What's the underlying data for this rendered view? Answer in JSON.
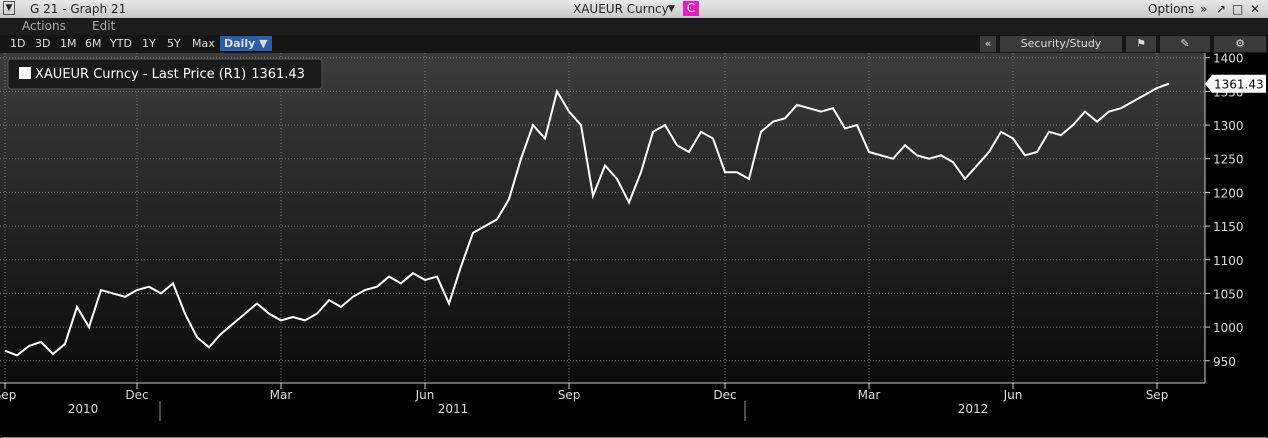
{
  "ui": {
    "window_title": "G 21 - Graph 21",
    "security": "XAUEUR Curncy",
    "security_tag": "C",
    "options": "Options",
    "menu": [
      "Actions",
      "Edit"
    ],
    "periods": [
      "1D",
      "3D",
      "1M",
      "6M",
      "YTD",
      "1Y",
      "5Y",
      "Max",
      "Daily ▼"
    ],
    "collapse": "«",
    "security_study": "Security/Study"
  },
  "chart_data": {
    "type": "line",
    "categories": [
      "Sep",
      null,
      null,
      null,
      null,
      null,
      null,
      null,
      null,
      null,
      null,
      "Dec",
      null,
      null,
      null,
      null,
      null,
      null,
      null,
      null,
      null,
      null,
      null,
      "Mar",
      null,
      null,
      null,
      null,
      null,
      null,
      null,
      null,
      null,
      null,
      null,
      "Jun",
      null,
      null,
      null,
      null,
      null,
      null,
      null,
      null,
      null,
      null,
      null,
      "Sep",
      null,
      null,
      null,
      null,
      null,
      null,
      null,
      null,
      null,
      null,
      null,
      null,
      "Dec",
      null,
      null,
      null,
      null,
      null,
      null,
      null,
      null,
      null,
      null,
      null,
      "Mar",
      null,
      null,
      null,
      null,
      null,
      null,
      null,
      null,
      null,
      null,
      null,
      "Jun",
      null,
      null,
      null,
      null,
      null,
      null,
      null,
      null,
      null,
      null,
      null,
      "Sep",
      null
    ],
    "years": [
      "2010",
      "2011",
      "2012"
    ],
    "series": [
      {
        "name": "XAUEUR Curncy - Last Price (R1)",
        "color": "#ffffff",
        "values": [
          965,
          958,
          972,
          978,
          960,
          975,
          1030,
          1000,
          1055,
          1050,
          1045,
          1055,
          1060,
          1050,
          1065,
          1020,
          985,
          970,
          990,
          1005,
          1020,
          1035,
          1020,
          1010,
          1015,
          1010,
          1020,
          1040,
          1030,
          1045,
          1055,
          1060,
          1075,
          1065,
          1080,
          1070,
          1075,
          1035,
          1090,
          1140,
          1150,
          1160,
          1190,
          1250,
          1300,
          1280,
          1350,
          1320,
          1300,
          1195,
          1240,
          1220,
          1185,
          1230,
          1290,
          1300,
          1270,
          1260,
          1290,
          1280,
          1230,
          1230,
          1220,
          1290,
          1305,
          1310,
          1330,
          1325,
          1320,
          1325,
          1295,
          1300,
          1260,
          1255,
          1250,
          1270,
          1255,
          1250,
          1255,
          1245,
          1220,
          1240,
          1260,
          1290,
          1280,
          1255,
          1260,
          1290,
          1285,
          1300,
          1320,
          1305,
          1320,
          1325,
          1335,
          1345,
          1355,
          1361.43
        ]
      }
    ],
    "ylim": [
      917,
      1407
    ],
    "yticks": [
      950,
      1000,
      1050,
      1100,
      1150,
      1200,
      1250,
      1300,
      1350,
      1400
    ],
    "grid": true
  }
}
